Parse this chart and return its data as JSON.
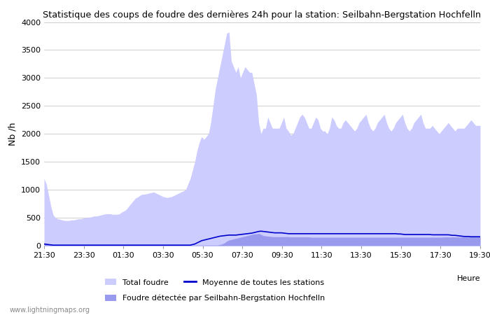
{
  "title": "Statistique des coups de foudre des dernières 24h pour la station: Seilbahn-Bergstation Hochfelln",
  "ylabel": "Nb /h",
  "xlabel": "Heure",
  "watermark": "www.lightningmaps.org",
  "ylim": [
    0,
    4000
  ],
  "yticks": [
    0,
    500,
    1000,
    1500,
    2000,
    2500,
    3000,
    3500,
    4000
  ],
  "xtick_labels": [
    "21:30",
    "23:30",
    "01:30",
    "03:30",
    "05:30",
    "07:30",
    "09:30",
    "11:30",
    "13:30",
    "15:30",
    "17:30",
    "19:30"
  ],
  "legend_total": "Total foudre",
  "legend_moyenne": "Moyenne de toutes les stations",
  "legend_foudre": "Foudre détectée par Seilbahn-Bergstation Hochfelln",
  "color_total": "#ccccff",
  "color_foudre": "#9999ee",
  "color_moyenne": "#0000cc",
  "bg_color": "#ffffff",
  "grid_color": "#bbbbbb",
  "total_foudre": [
    1200,
    1100,
    900,
    700,
    550,
    500,
    480,
    470,
    460,
    450,
    450,
    450,
    460,
    460,
    470,
    480,
    480,
    490,
    500,
    510,
    510,
    520,
    530,
    530,
    540,
    550,
    560,
    570,
    570,
    570,
    560,
    560,
    560,
    570,
    600,
    620,
    650,
    700,
    750,
    800,
    850,
    870,
    900,
    920,
    920,
    930,
    940,
    950,
    960,
    940,
    920,
    900,
    880,
    870,
    860,
    870,
    880,
    900,
    920,
    940,
    960,
    980,
    1000,
    1100,
    1200,
    1350,
    1500,
    1700,
    1850,
    1950,
    1900,
    1950,
    2000,
    2200,
    2500,
    2800,
    3000,
    3200,
    3400,
    3600,
    3800,
    3820,
    3300,
    3200,
    3100,
    3200,
    3000,
    3100,
    3200,
    3150,
    3100,
    3100,
    2900,
    2700,
    2200,
    2000,
    2100,
    2100,
    2300,
    2200,
    2100,
    2100,
    2100,
    2100,
    2200,
    2300,
    2100,
    2050,
    1980,
    2000,
    2100,
    2200,
    2300,
    2350,
    2300,
    2200,
    2100,
    2100,
    2200,
    2300,
    2250,
    2100,
    2050,
    2050,
    2000,
    2100,
    2300,
    2250,
    2150,
    2100,
    2100,
    2200,
    2250,
    2200,
    2150,
    2100,
    2050,
    2100,
    2200,
    2250,
    2300,
    2350,
    2200,
    2100,
    2050,
    2100,
    2200,
    2250,
    2300,
    2350,
    2200,
    2100,
    2050,
    2100,
    2200,
    2250,
    2300,
    2350,
    2200,
    2100,
    2050,
    2100,
    2200,
    2250,
    2300,
    2350,
    2200,
    2100,
    2100,
    2100,
    2150,
    2100,
    2050,
    2000,
    2050,
    2100,
    2150,
    2200,
    2150,
    2100,
    2050,
    2100,
    2100,
    2100,
    2100,
    2150,
    2200,
    2250,
    2200,
    2150,
    2150,
    2150
  ],
  "foudre_detectee": [
    50,
    40,
    30,
    20,
    15,
    10,
    10,
    10,
    10,
    10,
    10,
    10,
    10,
    10,
    10,
    10,
    10,
    10,
    10,
    10,
    10,
    10,
    10,
    10,
    10,
    10,
    10,
    10,
    10,
    10,
    10,
    10,
    10,
    10,
    10,
    10,
    10,
    10,
    10,
    10,
    10,
    10,
    10,
    10,
    10,
    10,
    10,
    10,
    10,
    10,
    10,
    10,
    10,
    10,
    10,
    10,
    10,
    10,
    10,
    10,
    10,
    10,
    10,
    10,
    10,
    10,
    10,
    10,
    10,
    10,
    10,
    10,
    10,
    10,
    10,
    10,
    10,
    20,
    30,
    50,
    80,
    100,
    110,
    120,
    130,
    140,
    150,
    160,
    170,
    180,
    190,
    200,
    210,
    210,
    220,
    200,
    180,
    175,
    170,
    165,
    160,
    160,
    160,
    160,
    160,
    160,
    160,
    160,
    155,
    155,
    155,
    155,
    155,
    155,
    155,
    155,
    155,
    150,
    150,
    150,
    150,
    150,
    150,
    150,
    150,
    150,
    150,
    150,
    150,
    150,
    150,
    150,
    150,
    150,
    150,
    150,
    150,
    150,
    150,
    150,
    150,
    150,
    150,
    150,
    150,
    150,
    150,
    150,
    150,
    150,
    150,
    150,
    150,
    150,
    150,
    150,
    150,
    150,
    150,
    150,
    150,
    150,
    150,
    150,
    150,
    150,
    150,
    150,
    150,
    150,
    150,
    150,
    150,
    150,
    150,
    155,
    155,
    155,
    155,
    155,
    155,
    155,
    155,
    155,
    155,
    155,
    155,
    155,
    155,
    155,
    155,
    155
  ],
  "moyenne": [
    30,
    25,
    20,
    15,
    10,
    10,
    10,
    10,
    10,
    10,
    10,
    10,
    10,
    10,
    10,
    10,
    10,
    10,
    10,
    10,
    10,
    10,
    10,
    10,
    10,
    10,
    10,
    10,
    10,
    10,
    10,
    10,
    10,
    10,
    10,
    10,
    10,
    10,
    10,
    10,
    10,
    10,
    10,
    10,
    10,
    10,
    10,
    10,
    10,
    10,
    10,
    10,
    10,
    10,
    10,
    10,
    10,
    10,
    10,
    10,
    10,
    10,
    10,
    10,
    10,
    20,
    30,
    50,
    70,
    90,
    100,
    110,
    120,
    130,
    140,
    150,
    160,
    170,
    175,
    180,
    185,
    190,
    190,
    190,
    190,
    195,
    200,
    205,
    210,
    215,
    220,
    225,
    235,
    245,
    255,
    260,
    255,
    250,
    245,
    240,
    235,
    230,
    230,
    230,
    230,
    225,
    220,
    215,
    215,
    215,
    215,
    215,
    215,
    215,
    215,
    215,
    215,
    215,
    215,
    215,
    215,
    215,
    215,
    215,
    215,
    215,
    215,
    215,
    215,
    215,
    215,
    215,
    215,
    215,
    215,
    215,
    215,
    215,
    215,
    215,
    215,
    215,
    215,
    215,
    215,
    215,
    215,
    215,
    215,
    215,
    215,
    215,
    215,
    215,
    215,
    210,
    210,
    205,
    200,
    200,
    200,
    200,
    200,
    200,
    200,
    200,
    200,
    200,
    200,
    200,
    195,
    195,
    195,
    195,
    195,
    195,
    195,
    195,
    190,
    185,
    185,
    180,
    175,
    170,
    165,
    165,
    165,
    160,
    160,
    160,
    160,
    160
  ],
  "n_points": 192
}
